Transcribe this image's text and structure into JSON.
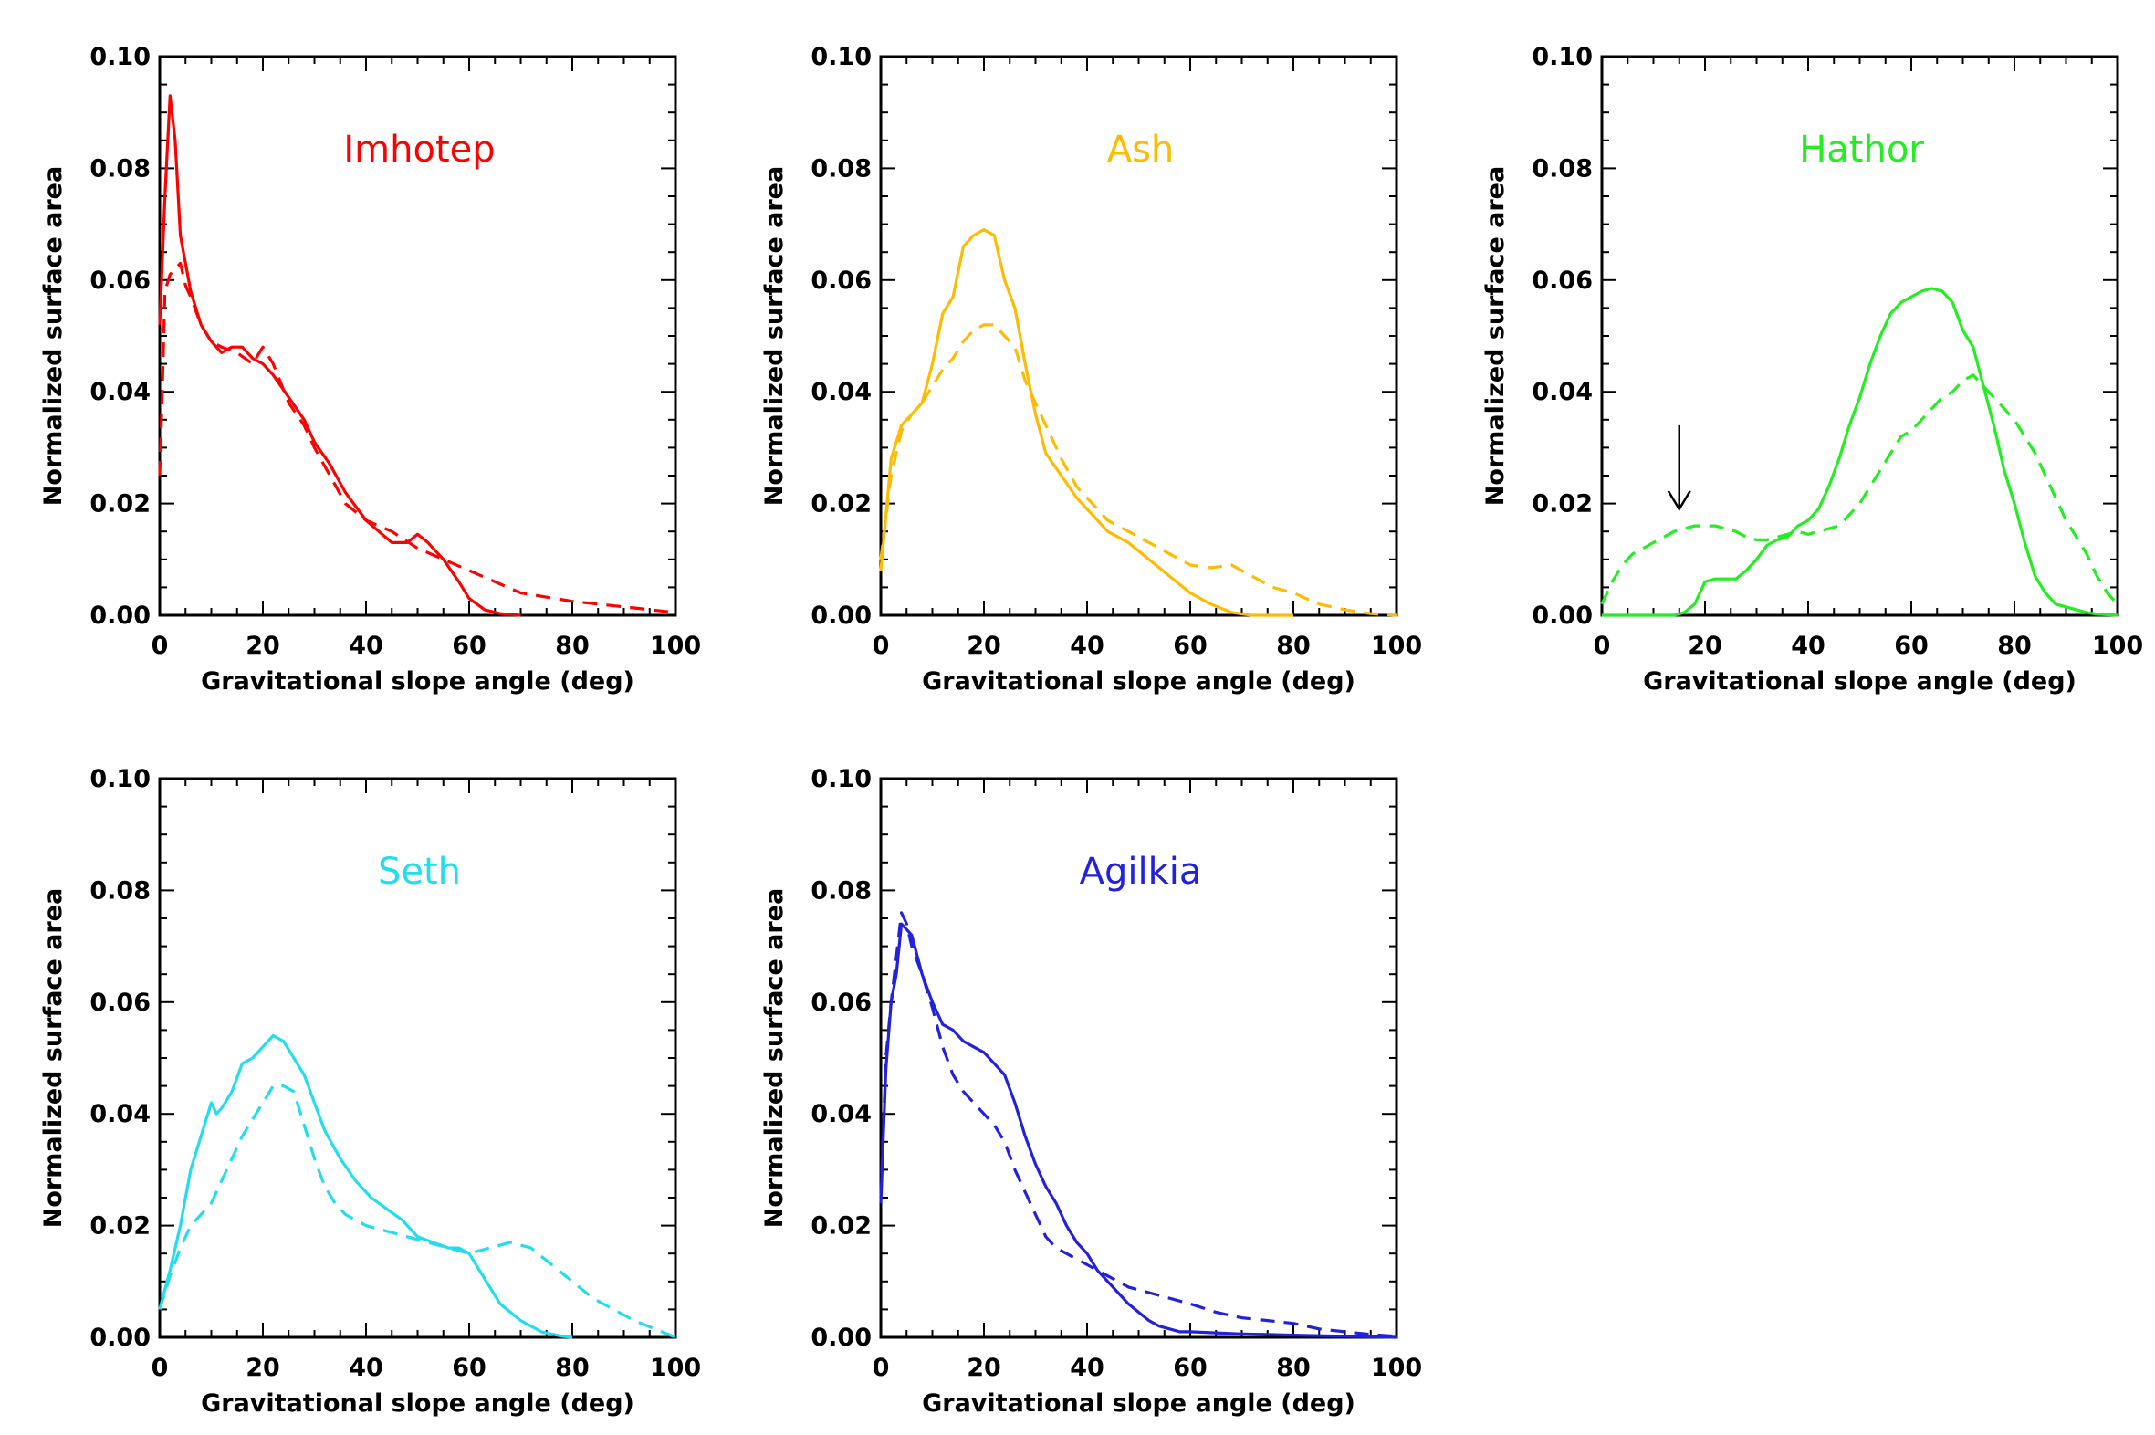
{
  "chart_data": [
    {
      "type": "line",
      "title": "Imhotep",
      "color": "#ff0000",
      "xlabel": "Gravitational slope angle (deg)",
      "ylabel": "Normalized surface area",
      "xlim": [
        0,
        100
      ],
      "ylim": [
        0,
        0.1
      ],
      "xticks": [
        "0",
        "20",
        "40",
        "60",
        "80",
        "100"
      ],
      "yticks": [
        "0.00",
        "0.02",
        "0.04",
        "0.06",
        "0.08",
        "0.10"
      ],
      "series": [
        {
          "name": "solid",
          "style": "solid",
          "x": [
            0,
            1,
            2,
            3,
            4,
            6,
            8,
            10,
            12,
            14,
            16,
            18,
            20,
            22,
            25,
            28,
            30,
            33,
            36,
            40,
            45,
            48,
            50,
            52,
            55,
            58,
            60,
            63,
            66,
            70
          ],
          "y": [
            0.052,
            0.075,
            0.093,
            0.085,
            0.068,
            0.058,
            0.052,
            0.049,
            0.047,
            0.048,
            0.048,
            0.046,
            0.045,
            0.043,
            0.039,
            0.035,
            0.031,
            0.027,
            0.022,
            0.017,
            0.013,
            0.013,
            0.0145,
            0.013,
            0.01,
            0.006,
            0.003,
            0.001,
            0.0003,
            0
          ]
        },
        {
          "name": "dashed",
          "style": "dashed",
          "x": [
            0,
            0.5,
            1,
            2,
            3,
            4,
            5,
            6,
            8,
            10,
            12,
            15,
            18,
            20,
            22,
            25,
            28,
            30,
            33,
            36,
            40,
            45,
            50,
            55,
            60,
            65,
            70,
            80,
            90,
            100
          ],
          "y": [
            0.025,
            0.04,
            0.058,
            0.061,
            0.062,
            0.063,
            0.059,
            0.057,
            0.052,
            0.049,
            0.048,
            0.047,
            0.045,
            0.048,
            0.045,
            0.038,
            0.034,
            0.03,
            0.025,
            0.02,
            0.017,
            0.015,
            0.012,
            0.01,
            0.008,
            0.006,
            0.004,
            0.0025,
            0.0015,
            0.0005
          ]
        }
      ]
    },
    {
      "type": "line",
      "title": "Ash",
      "color": "#ffbb00",
      "xlabel": "Gravitational slope angle (deg)",
      "ylabel": "Normalized surface area",
      "xlim": [
        0,
        100
      ],
      "ylim": [
        0,
        0.1
      ],
      "xticks": [
        "0",
        "20",
        "40",
        "60",
        "80",
        "100"
      ],
      "yticks": [
        "0.00",
        "0.02",
        "0.04",
        "0.06",
        "0.08",
        "0.10"
      ],
      "series": [
        {
          "name": "solid",
          "style": "solid",
          "x": [
            0,
            2,
            4,
            6,
            8,
            10,
            12,
            14,
            16,
            18,
            20,
            22,
            24,
            26,
            28,
            30,
            32,
            35,
            38,
            41,
            44,
            48,
            52,
            56,
            60,
            64,
            68,
            72,
            76,
            80
          ],
          "y": [
            0.008,
            0.028,
            0.034,
            0.036,
            0.038,
            0.045,
            0.054,
            0.057,
            0.066,
            0.068,
            0.069,
            0.068,
            0.06,
            0.055,
            0.045,
            0.036,
            0.029,
            0.025,
            0.021,
            0.018,
            0.015,
            0.013,
            0.01,
            0.007,
            0.004,
            0.002,
            0.0005,
            0,
            0,
            0
          ]
        },
        {
          "name": "dashed",
          "style": "dashed",
          "x": [
            0,
            2,
            4,
            6,
            8,
            10,
            12,
            14,
            16,
            18,
            20,
            22,
            24,
            26,
            28,
            30,
            32,
            35,
            38,
            41,
            44,
            48,
            52,
            56,
            60,
            64,
            68,
            72,
            76,
            80,
            85,
            90,
            95,
            100
          ],
          "y": [
            0.01,
            0.025,
            0.033,
            0.036,
            0.038,
            0.041,
            0.044,
            0.046,
            0.049,
            0.051,
            0.052,
            0.052,
            0.05,
            0.048,
            0.042,
            0.038,
            0.034,
            0.028,
            0.023,
            0.02,
            0.017,
            0.015,
            0.013,
            0.011,
            0.009,
            0.0085,
            0.009,
            0.007,
            0.005,
            0.004,
            0.002,
            0.001,
            0.0003,
            0
          ]
        }
      ]
    },
    {
      "type": "line",
      "title": "Hathor",
      "color": "#22ee22",
      "xlabel": "Gravitational slope angle (deg)",
      "ylabel": "Normalized surface area",
      "xlim": [
        0,
        100
      ],
      "ylim": [
        0,
        0.1
      ],
      "xticks": [
        "0",
        "20",
        "40",
        "60",
        "80",
        "100"
      ],
      "yticks": [
        "0.00",
        "0.02",
        "0.04",
        "0.06",
        "0.08",
        "0.10"
      ],
      "arrow": {
        "x": 15,
        "y_from": 0.034,
        "y_to": 0.019
      },
      "series": [
        {
          "name": "solid",
          "style": "solid",
          "x": [
            0,
            5,
            10,
            14,
            16,
            18,
            20,
            22,
            24,
            26,
            28,
            30,
            32,
            34,
            36,
            38,
            40,
            42,
            44,
            46,
            48,
            50,
            52,
            54,
            56,
            58,
            60,
            62,
            64,
            66,
            68,
            70,
            72,
            74,
            76,
            78,
            80,
            82,
            84,
            86,
            88,
            90,
            92,
            94,
            96,
            98,
            100
          ],
          "y": [
            0,
            0,
            0,
            0,
            0.0005,
            0.002,
            0.006,
            0.0065,
            0.0065,
            0.0065,
            0.008,
            0.01,
            0.0125,
            0.0135,
            0.014,
            0.016,
            0.017,
            0.019,
            0.023,
            0.028,
            0.034,
            0.039,
            0.045,
            0.05,
            0.054,
            0.056,
            0.057,
            0.058,
            0.0585,
            0.058,
            0.056,
            0.051,
            0.048,
            0.041,
            0.034,
            0.026,
            0.02,
            0.013,
            0.007,
            0.004,
            0.002,
            0.0015,
            0.001,
            0.0005,
            0.0002,
            0.0001,
            0
          ]
        },
        {
          "name": "dashed",
          "style": "dashed",
          "x": [
            0,
            2,
            4,
            6,
            8,
            10,
            12,
            14,
            16,
            18,
            20,
            22,
            24,
            26,
            28,
            30,
            32,
            34,
            36,
            38,
            40,
            42,
            44,
            46,
            48,
            50,
            52,
            54,
            56,
            58,
            60,
            62,
            64,
            66,
            68,
            70,
            72,
            74,
            76,
            78,
            80,
            82,
            84,
            86,
            88,
            90,
            92,
            94,
            96,
            98,
            100
          ],
          "y": [
            0.002,
            0.006,
            0.009,
            0.011,
            0.012,
            0.013,
            0.014,
            0.015,
            0.0155,
            0.016,
            0.016,
            0.016,
            0.0155,
            0.015,
            0.014,
            0.0135,
            0.0135,
            0.014,
            0.0145,
            0.015,
            0.0145,
            0.015,
            0.0155,
            0.016,
            0.018,
            0.02,
            0.023,
            0.026,
            0.029,
            0.032,
            0.033,
            0.035,
            0.037,
            0.039,
            0.04,
            0.042,
            0.043,
            0.041,
            0.039,
            0.037,
            0.035,
            0.032,
            0.029,
            0.025,
            0.021,
            0.017,
            0.014,
            0.011,
            0.007,
            0.004,
            0.002
          ]
        }
      ]
    },
    {
      "type": "line",
      "title": "Seth",
      "color": "#22ddee",
      "xlabel": "Gravitational slope angle (deg)",
      "ylabel": "Normalized surface area",
      "xlim": [
        0,
        100
      ],
      "ylim": [
        0,
        0.1
      ],
      "xticks": [
        "0",
        "20",
        "40",
        "60",
        "80",
        "100"
      ],
      "yticks": [
        "0.00",
        "0.02",
        "0.04",
        "0.06",
        "0.08",
        "0.10"
      ],
      "series": [
        {
          "name": "solid",
          "style": "solid",
          "x": [
            0,
            2,
            4,
            6,
            8,
            10,
            11,
            12,
            14,
            16,
            18,
            20,
            22,
            24,
            26,
            28,
            30,
            32,
            35,
            38,
            41,
            44,
            47,
            50,
            53,
            56,
            58,
            60,
            62,
            64,
            66,
            70,
            74,
            78,
            80
          ],
          "y": [
            0.005,
            0.012,
            0.02,
            0.03,
            0.036,
            0.042,
            0.04,
            0.041,
            0.044,
            0.049,
            0.05,
            0.052,
            0.054,
            0.053,
            0.05,
            0.047,
            0.042,
            0.037,
            0.032,
            0.028,
            0.025,
            0.023,
            0.021,
            0.018,
            0.017,
            0.016,
            0.016,
            0.015,
            0.012,
            0.009,
            0.006,
            0.003,
            0.001,
            0.0002,
            0
          ]
        },
        {
          "name": "dashed",
          "style": "dashed",
          "x": [
            0,
            2,
            4,
            6,
            8,
            10,
            12,
            14,
            16,
            18,
            20,
            22,
            24,
            26,
            28,
            30,
            32,
            34,
            36,
            38,
            40,
            44,
            48,
            52,
            56,
            60,
            64,
            68,
            72,
            76,
            80,
            84,
            88,
            92,
            96,
            100
          ],
          "y": [
            0.005,
            0.011,
            0.016,
            0.02,
            0.022,
            0.024,
            0.028,
            0.032,
            0.036,
            0.039,
            0.042,
            0.045,
            0.045,
            0.044,
            0.038,
            0.032,
            0.027,
            0.024,
            0.022,
            0.021,
            0.02,
            0.019,
            0.018,
            0.017,
            0.016,
            0.015,
            0.016,
            0.017,
            0.016,
            0.013,
            0.01,
            0.007,
            0.005,
            0.003,
            0.0015,
            0
          ]
        }
      ]
    },
    {
      "type": "line",
      "title": "Agilkia",
      "color": "#2222dd",
      "xlabel": "Gravitational slope angle (deg)",
      "ylabel": "Normalized surface area",
      "xlim": [
        0,
        100
      ],
      "ylim": [
        0,
        0.1
      ],
      "xticks": [
        "0",
        "20",
        "40",
        "60",
        "80",
        "100"
      ],
      "yticks": [
        "0.00",
        "0.02",
        "0.04",
        "0.06",
        "0.08",
        "0.10"
      ],
      "series": [
        {
          "name": "solid",
          "style": "solid",
          "x": [
            0,
            1,
            2,
            3,
            4,
            5,
            6,
            8,
            10,
            12,
            14,
            16,
            18,
            20,
            22,
            24,
            26,
            28,
            30,
            32,
            34,
            36,
            38,
            40,
            42,
            44,
            46,
            48,
            50,
            52,
            54,
            56,
            58,
            60,
            65,
            70,
            75,
            80,
            85,
            90,
            95,
            100
          ],
          "y": [
            0.024,
            0.048,
            0.06,
            0.065,
            0.074,
            0.073,
            0.072,
            0.065,
            0.06,
            0.056,
            0.055,
            0.053,
            0.052,
            0.051,
            0.049,
            0.047,
            0.042,
            0.036,
            0.031,
            0.027,
            0.024,
            0.02,
            0.017,
            0.015,
            0.012,
            0.01,
            0.008,
            0.006,
            0.0045,
            0.003,
            0.002,
            0.0015,
            0.001,
            0.001,
            0.0008,
            0.0006,
            0.0005,
            0.0004,
            0.0003,
            0.0002,
            0.0001,
            0
          ]
        },
        {
          "name": "dashed",
          "style": "dashed",
          "x": [
            0,
            1,
            2,
            3,
            4,
            5,
            6,
            8,
            10,
            12,
            14,
            16,
            18,
            20,
            22,
            24,
            26,
            28,
            30,
            32,
            34,
            36,
            38,
            40,
            44,
            48,
            52,
            56,
            60,
            65,
            70,
            75,
            80,
            85,
            90,
            95,
            100
          ],
          "y": [
            0.025,
            0.05,
            0.06,
            0.068,
            0.076,
            0.074,
            0.07,
            0.065,
            0.059,
            0.052,
            0.047,
            0.044,
            0.042,
            0.04,
            0.038,
            0.035,
            0.03,
            0.026,
            0.022,
            0.018,
            0.016,
            0.015,
            0.014,
            0.013,
            0.011,
            0.009,
            0.008,
            0.007,
            0.006,
            0.0045,
            0.0035,
            0.003,
            0.0025,
            0.0015,
            0.001,
            0.0005,
            0.0002
          ]
        }
      ]
    }
  ]
}
